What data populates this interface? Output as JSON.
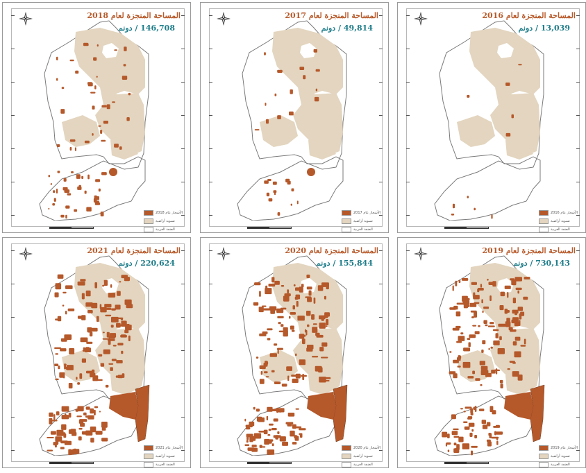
{
  "colors": {
    "planted": "#b5582a",
    "agricultural": "#e3d5bf",
    "west_bank": "#ffffff",
    "title": "#b85a2a",
    "area_value": "#1e7d8a"
  },
  "icons": [
    "compass-rose-icon"
  ],
  "panels": [
    {
      "title": "المساحة المنجزة لعام 2018",
      "area": "146,708 / دونم",
      "legend": [
        "الأشجار عام 2018",
        "تسوية أراضية",
        "الضفة الغربية"
      ],
      "planted_level": "medium",
      "jordan_valley_strip": false,
      "south_dot": true
    },
    {
      "title": "المساحة المنجزة لعام 2017",
      "area": "49,814 / دونم",
      "legend": [
        "الأشجار عام 2017",
        "تسوية أراضية",
        "الضفة الغربية"
      ],
      "planted_level": "low",
      "jordan_valley_strip": false,
      "south_dot": true
    },
    {
      "title": "المساحة المنجزة لعام 2016",
      "area": "13,039 / دونم",
      "legend": [
        "الأشجار عام 2016",
        "تسوية أراضية",
        "الضفة الغربية"
      ],
      "planted_level": "minimal",
      "jordan_valley_strip": false,
      "south_dot": false
    },
    {
      "title": "المساحة المنجزة لعام 2021",
      "area": "220,624 / دونم",
      "legend": [
        "2021 الأشجار عام",
        "تسوية أراضية",
        "الضفة الغربية"
      ],
      "planted_level": "high",
      "jordan_valley_strip": true,
      "south_dot": false
    },
    {
      "title": "المساحة المنجزة لعام 2020",
      "area": "155,844 / دونم",
      "legend": [
        "2020 الأشجار عام",
        "تسوية أراضية",
        "الضفة الغربية"
      ],
      "planted_level": "high",
      "jordan_valley_strip": true,
      "south_dot": false
    },
    {
      "title": "المساحة المنجزة لعام 2019",
      "area": "730,143 / دونم",
      "legend": [
        "2019 الأشجار عام",
        "تسوية أراضية",
        "الضفة الغربية"
      ],
      "planted_level": "high",
      "jordan_valley_strip": true,
      "south_dot": false
    }
  ]
}
